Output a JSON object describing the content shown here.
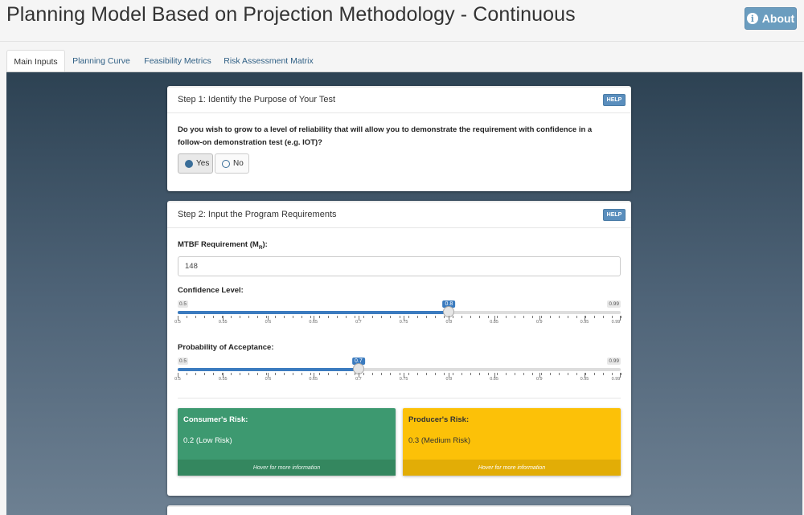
{
  "header": {
    "title": "Planning Model Based on Projection Methodology - Continuous",
    "about_label": "About",
    "about_icon": "info-icon"
  },
  "tabs": [
    {
      "label": "Main Inputs",
      "active": true
    },
    {
      "label": "Planning Curve",
      "active": false
    },
    {
      "label": "Feasibility Metrics",
      "active": false
    },
    {
      "label": "Risk Assessment Matrix",
      "active": false
    }
  ],
  "step1": {
    "title": "Step 1: Identify the Purpose of Your Test",
    "help_label": "HELP",
    "question": "Do you wish to grow to a level of reliability that will allow you to demonstrate the requirement with confidence in a follow-on demonstration test (e.g. IOT)?",
    "options": [
      {
        "label": "Yes",
        "selected": true
      },
      {
        "label": "No",
        "selected": false
      }
    ]
  },
  "step2": {
    "title": "Step 2: Input the Program Requirements",
    "help_label": "HELP",
    "mtbf_label": "MTBF Requirement (M",
    "mtbf_sub": "R",
    "mtbf_suffix": "):",
    "mtbf_value": "148",
    "confidence": {
      "label": "Confidence Level:",
      "min": "0.5",
      "max": "0.99",
      "value": "0.8",
      "value_num": 0.8
    },
    "acceptance": {
      "label": "Probability of Acceptance:",
      "min": "0.5",
      "max": "0.99",
      "value": "0.7",
      "value_num": 0.7
    },
    "tick_labels": [
      "0.5",
      "0.55",
      "0.6",
      "0.65",
      "0.7",
      "0.75",
      "0.8",
      "0.85",
      "0.9",
      "0.95",
      "0.99"
    ],
    "consumer_risk": {
      "title": "Consumer's Risk:",
      "value": "0.2 (Low Risk)",
      "footer": "Hover for more information",
      "color": "#3d9970"
    },
    "producer_risk": {
      "title": "Producer's Risk:",
      "value": "0.3 (Medium Risk)",
      "footer": "Hover for more information",
      "color": "#fcc108"
    }
  }
}
